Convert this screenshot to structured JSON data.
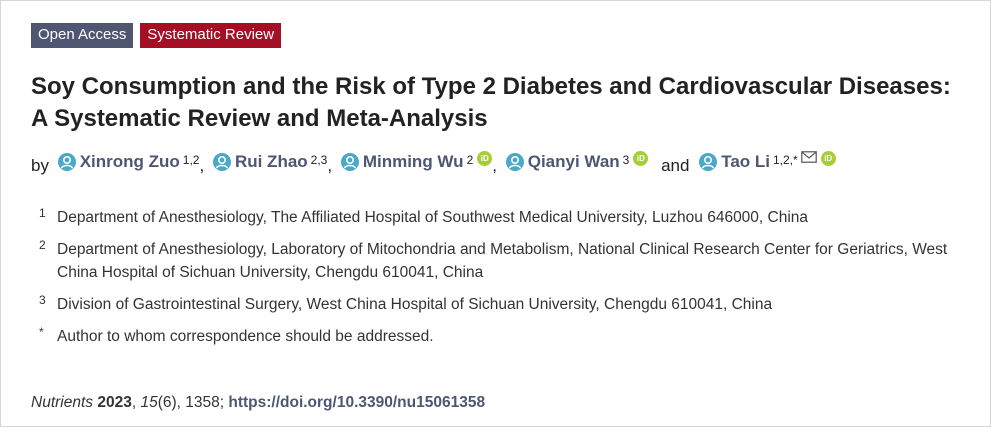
{
  "badges": {
    "open_access": "Open Access",
    "article_type": "Systematic Review"
  },
  "colors": {
    "open_access_bg": "#4f5671",
    "article_type_bg": "#a50f26",
    "author_name": "#4f5671",
    "person_icon": "#4aa8c8",
    "orcid_icon": "#a6ce39"
  },
  "title": "Soy Consumption and the Risk of Type 2 Diabetes and Cardiovascular Diseases: A Systematic Review and Meta-Analysis",
  "authors": {
    "by_label": "by",
    "and_label": "and",
    "list": [
      {
        "name": "Xinrong Zuo",
        "affil": "1,2"
      },
      {
        "name": "Rui Zhao",
        "affil": "2,3"
      },
      {
        "name": "Minming Wu",
        "affil": "2"
      },
      {
        "name": "Qianyi Wan",
        "affil": "3"
      },
      {
        "name": "Tao Li",
        "affil": "1,2,*"
      }
    ],
    "orcid_label": "iD"
  },
  "affiliations": [
    {
      "num": "1",
      "text": "Department of Anesthesiology, The Affiliated Hospital of Southwest Medical University, Luzhou 646000, China"
    },
    {
      "num": "2",
      "text": "Department of Anesthesiology, Laboratory of Mitochondria and Metabolism, National Clinical Research Center for Geriatrics, West China Hospital of Sichuan University, Chengdu 610041, China"
    },
    {
      "num": "3",
      "text": "Division of Gastrointestinal Surgery, West China Hospital of Sichuan University, Chengdu 610041, China"
    },
    {
      "num": "*",
      "text": "Author to whom correspondence should be addressed."
    }
  ],
  "citation": {
    "journal": "Nutrients",
    "year": "2023",
    "sep1": ", ",
    "volume": "15",
    "issue_pages": "(6), 1358; ",
    "doi": "https://doi.org/10.3390/nu15061358"
  }
}
